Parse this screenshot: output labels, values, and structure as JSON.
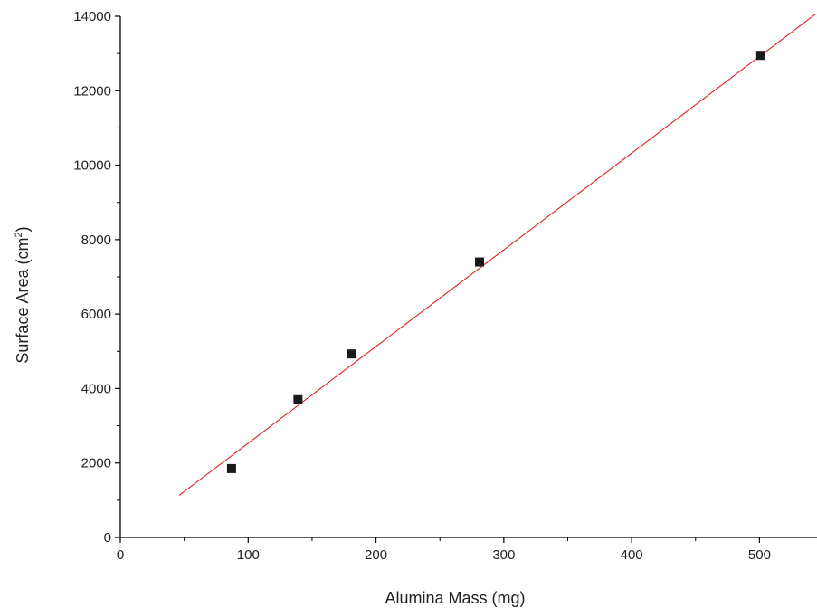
{
  "chart_data": {
    "type": "scatter",
    "xlabel": "Alumina Mass (mg)",
    "ylabel": "Surface Area (cm",
    "ylabel_sup": "2",
    "ylabel_close": ")",
    "xlim": [
      0,
      545
    ],
    "ylim": [
      0,
      14000
    ],
    "x_ticks": [
      0,
      100,
      200,
      300,
      400,
      500
    ],
    "x_tick_labels": [
      "0",
      "100",
      "200",
      "300",
      "400",
      "500"
    ],
    "y_ticks": [
      0,
      2000,
      4000,
      6000,
      8000,
      10000,
      12000,
      14000
    ],
    "y_tick_labels": [
      "0",
      "2000",
      "4000",
      "6000",
      "8000",
      "10000",
      "12000",
      "14000"
    ],
    "grid": false,
    "legend": "none",
    "series": [
      {
        "type": "scatter",
        "marker": "square",
        "color": "#1a1a1a",
        "points": [
          {
            "x": 87,
            "y": 1850
          },
          {
            "x": 139,
            "y": 3700
          },
          {
            "x": 181,
            "y": 4930
          },
          {
            "x": 281,
            "y": 7400
          },
          {
            "x": 501,
            "y": 12950
          }
        ]
      },
      {
        "type": "line",
        "color": "#e02020",
        "points": [
          {
            "x": 46,
            "y": 1130
          },
          {
            "x": 545,
            "y": 14070
          }
        ]
      }
    ]
  }
}
